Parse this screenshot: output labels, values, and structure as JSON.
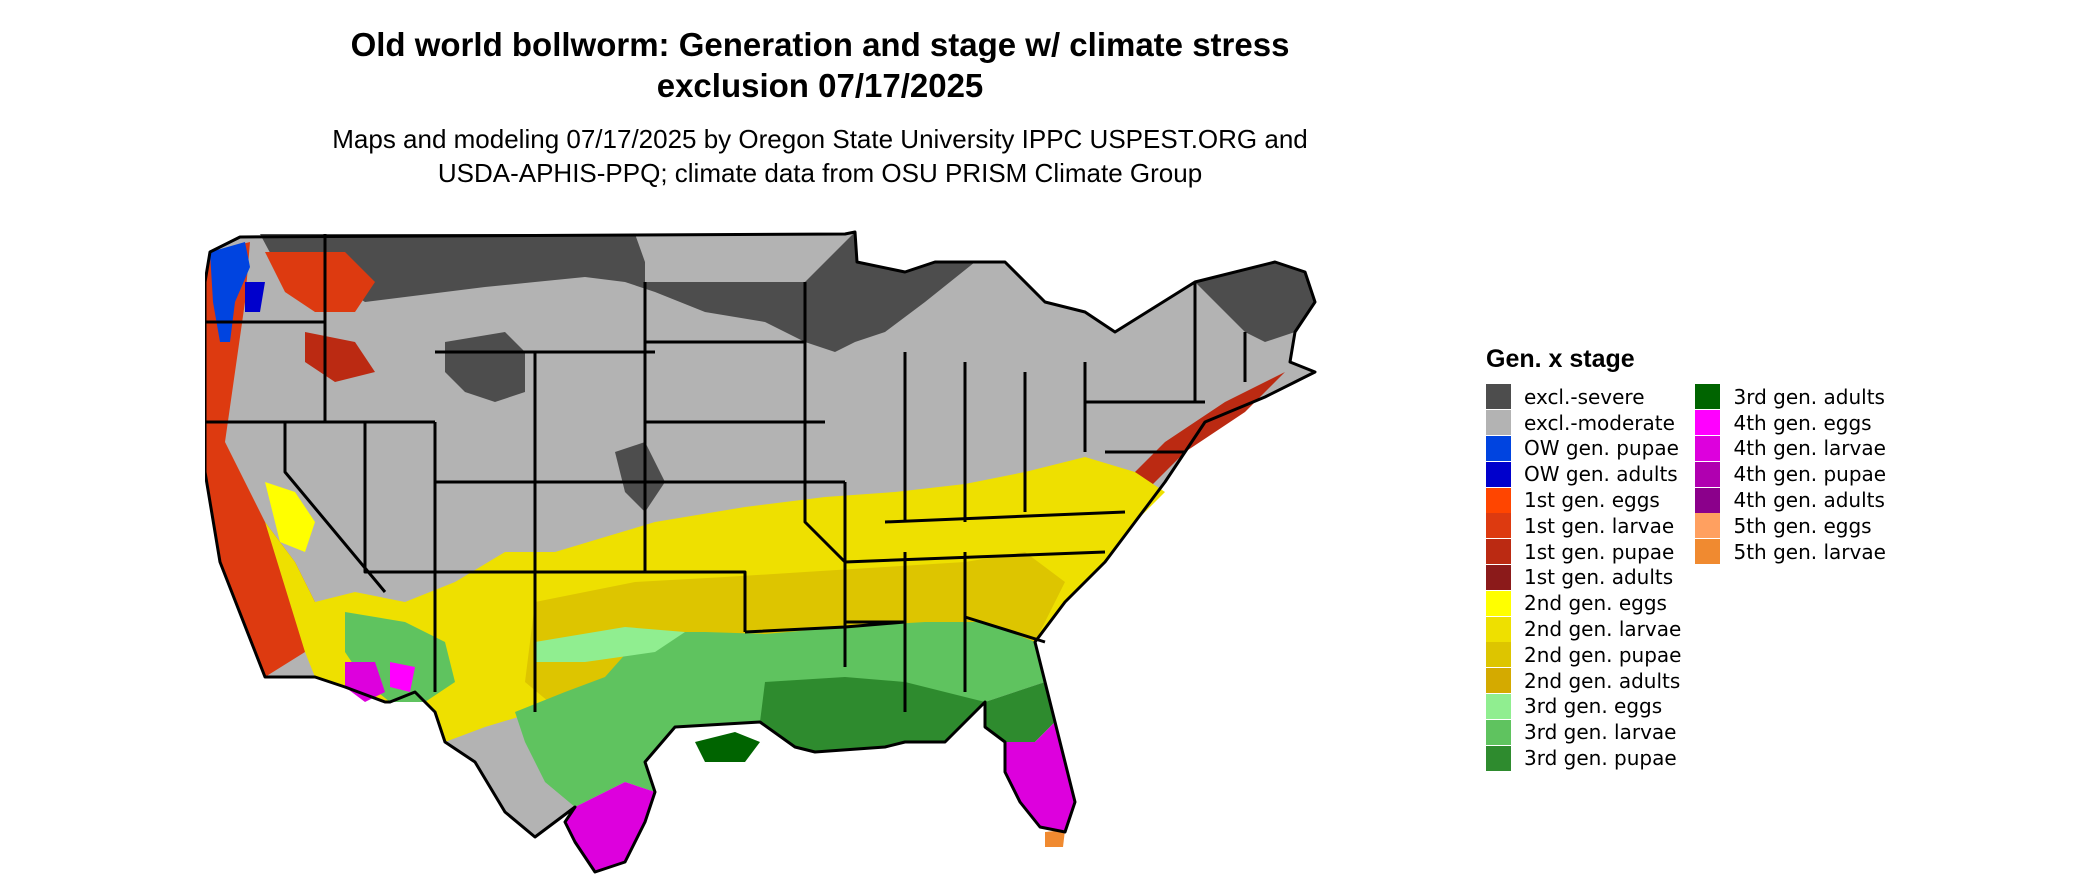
{
  "title": "Old world bollworm: Generation and stage w/ climate stress exclusion 07/17/2025",
  "subtitle": "Maps and modeling 07/17/2025 by Oregon State University IPPC USPEST.ORG and USDA-APHIS-PPQ; climate data from OSU PRISM Climate Group",
  "legend": {
    "title": "Gen. x stage",
    "items": [
      {
        "label": "excl.-severe",
        "color": "#4d4d4d"
      },
      {
        "label": "excl.-moderate",
        "color": "#b3b3b3"
      },
      {
        "label": "OW gen. pupae",
        "color": "#0044e0"
      },
      {
        "label": "OW gen. adults",
        "color": "#0000cc"
      },
      {
        "label": "1st gen. eggs",
        "color": "#ff4500"
      },
      {
        "label": "1st gen. larvae",
        "color": "#dd3a10"
      },
      {
        "label": "1st gen. pupae",
        "color": "#bb2a12"
      },
      {
        "label": "1st gen. adults",
        "color": "#8b1a1a"
      },
      {
        "label": "2nd gen. eggs",
        "color": "#ffff00"
      },
      {
        "label": "2nd gen. larvae",
        "color": "#eee000"
      },
      {
        "label": "2nd gen. pupae",
        "color": "#ddc500"
      },
      {
        "label": "2nd gen. adults",
        "color": "#d4aa00"
      },
      {
        "label": "3rd gen. eggs",
        "color": "#90ee90"
      },
      {
        "label": "3rd gen. larvae",
        "color": "#5fc35f"
      },
      {
        "label": "3rd gen. pupae",
        "color": "#2e8b2e"
      },
      {
        "label": "3rd gen. adults",
        "color": "#006400"
      },
      {
        "label": "4th gen. eggs",
        "color": "#ff00ff"
      },
      {
        "label": "4th gen. larvae",
        "color": "#dd00dd"
      },
      {
        "label": "4th gen. pupae",
        "color": "#b000b0"
      },
      {
        "label": "4th gen. adults",
        "color": "#8b008b"
      },
      {
        "label": "5th gen. eggs",
        "color": "#ffa060"
      },
      {
        "label": "5th gen. larvae",
        "color": "#f08a30"
      }
    ]
  }
}
